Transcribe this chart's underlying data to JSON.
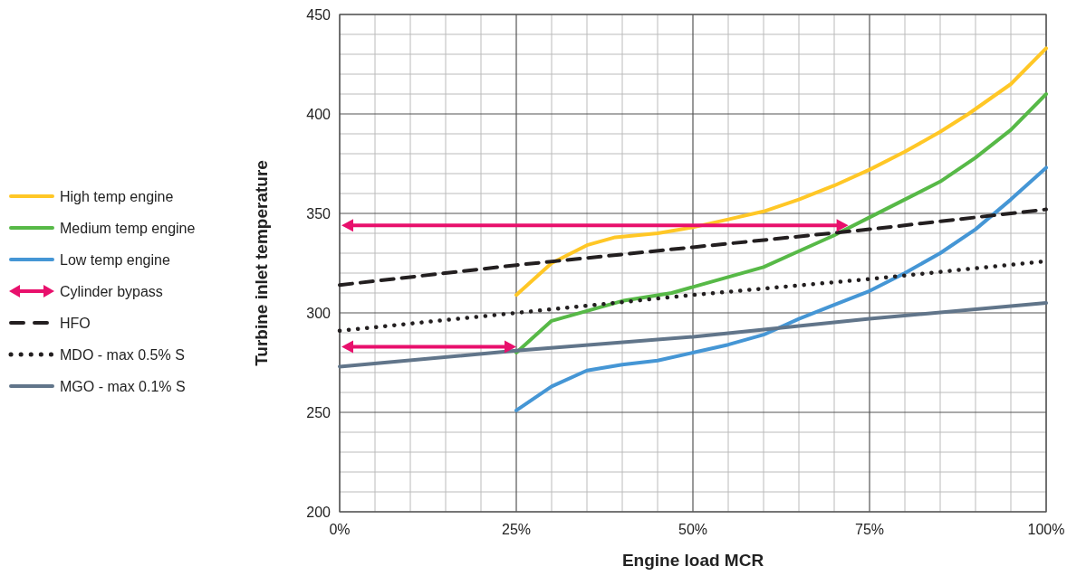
{
  "chart_data": {
    "type": "line",
    "xlabel": "Engine load MCR",
    "ylabel": "Turbine inlet temperature",
    "xlim": [
      0,
      100
    ],
    "ylim": [
      200,
      450
    ],
    "xticks": [
      {
        "value": 0,
        "label": "0%"
      },
      {
        "value": 25,
        "label": "25%"
      },
      {
        "value": 50,
        "label": "50%"
      },
      {
        "value": 75,
        "label": "75%"
      },
      {
        "value": 100,
        "label": "100%"
      }
    ],
    "yticks": [
      200,
      250,
      300,
      350,
      400,
      450
    ],
    "grid": true,
    "legend": "left",
    "annotations": [
      "Cylinder bypass"
    ],
    "series": [
      {
        "name": "High temp engine",
        "color": "#ffc726",
        "x": [
          25,
          30,
          35,
          39,
          45,
          50,
          55,
          60,
          65,
          70,
          75,
          80,
          85,
          89,
          95,
          100
        ],
        "values": [
          309,
          325,
          334,
          338,
          340,
          343,
          347,
          351,
          357,
          364,
          372,
          381,
          391,
          400,
          415,
          433
        ]
      },
      {
        "name": "Medium temp engine",
        "color": "#57b947",
        "x": [
          25,
          30,
          35,
          40,
          47,
          50,
          55,
          60,
          65,
          70,
          75,
          80,
          85,
          90,
          95,
          100
        ],
        "values": [
          280,
          296,
          301,
          306,
          310,
          313,
          318,
          323,
          331,
          339,
          348,
          357,
          366,
          378,
          392,
          410
        ]
      },
      {
        "name": "Low temp engine",
        "color": "#4596d5",
        "x": [
          25,
          30,
          35,
          40,
          45,
          50,
          55,
          60,
          65,
          70,
          75,
          80,
          85,
          90,
          95,
          100
        ],
        "values": [
          251,
          263,
          271,
          274,
          276,
          280,
          284,
          289,
          297,
          304,
          311,
          320,
          330,
          342,
          357,
          373
        ]
      },
      {
        "name": "HFO",
        "color": "#231f20",
        "line_style": "dashed",
        "x": [
          0,
          25,
          50,
          75,
          100
        ],
        "values": [
          314,
          324,
          333,
          342,
          352
        ]
      },
      {
        "name": "MDO - max 0.5% S",
        "color": "#231f20",
        "line_style": "dotted",
        "x": [
          0,
          25,
          50,
          75,
          100
        ],
        "values": [
          291,
          300,
          309,
          317,
          326
        ]
      },
      {
        "name": "MGO - max 0.1% S",
        "color": "#61758a",
        "x": [
          0,
          25,
          50,
          75,
          100
        ],
        "values": [
          273,
          281,
          288,
          297,
          305
        ]
      }
    ]
  }
}
